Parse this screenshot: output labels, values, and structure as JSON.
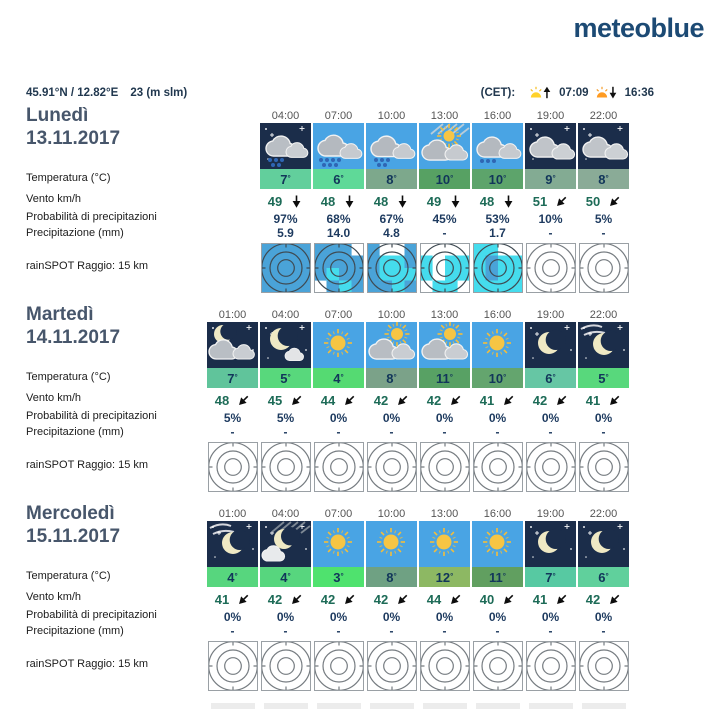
{
  "logo_text": "meteoblue",
  "header": {
    "coordinates": "45.91°N / 12.82°E",
    "elevation": "23 (m slm)",
    "timezone_label": "(CET):",
    "sunrise_time": "07:09",
    "sunset_time": "16:36"
  },
  "row_labels": {
    "temperature": "Temperatura (°C)",
    "wind": "Vento km/h",
    "precip_probability": "Probabilità di precipitazioni",
    "precip_amount": "Precipitazione (mm)",
    "rainspot": "rainSPOT Raggio: 15 km"
  },
  "deg_symbol": "°",
  "colors": {
    "logo": "#1c4a74",
    "day_sky": "#49a4e4",
    "night_sky": "#1b2d4a",
    "title_text": "#47566b",
    "navy_text": "#1d3a5f",
    "wind_text": "#1d6b57",
    "time_text": "#555555",
    "rainspot_blue": "#4aa3d8",
    "rainspot_cyan": "#45dced",
    "sunrise_yellow": "#ffd22a",
    "sunset_orange": "#ff9b21"
  },
  "days": [
    {
      "name": "Lunedì",
      "date": "13.11.2017",
      "columns": [
        null,
        {
          "time": "04:00",
          "icon": "rain-night",
          "temp": "7",
          "temp_color": "#62cf9c",
          "wind": "49",
          "wind_dir": "S",
          "prob": "97%",
          "precip": "5.9",
          "rainspot": "bbbbbbbbbbbbbbbb"
        },
        {
          "time": "07:00",
          "icon": "rain-day-heavy",
          "temp": "6",
          "temp_color": "#5fd998",
          "wind": "48",
          "wind_dir": "S",
          "prob": "68%",
          "precip": "14.0",
          "rainspot": "bbbwbbbbbcbbwbcb"
        },
        {
          "time": "10:00",
          "icon": "rain-day",
          "temp": "8",
          "temp_color": "#7da88c",
          "wind": "48",
          "wind_dir": "S",
          "prob": "67%",
          "precip": "4.8",
          "rainspot": "bwwbbccbbcccbbcb"
        },
        {
          "time": "13:00",
          "icon": "showers-day",
          "temp": "10",
          "temp_color": "#57a163",
          "wind": "49",
          "wind_dir": "S",
          "prob": "45%",
          "precip": "-",
          "rainspot": "wwwwcwcccwccwccw"
        },
        {
          "time": "16:00",
          "icon": "drizzle-day",
          "temp": "10",
          "temp_color": "#5da46b",
          "wind": "48",
          "wind_dir": "S",
          "prob": "53%",
          "precip": "1.7",
          "rainspot": "ccwwcbcccbcccccc"
        },
        {
          "time": "19:00",
          "icon": "cloudy-night",
          "temp": "9",
          "temp_color": "#83ab93",
          "wind": "51",
          "wind_dir": "SW",
          "prob": "10%",
          "precip": "-",
          "rainspot": "wwwwwwwwwwwwwwww"
        },
        {
          "time": "22:00",
          "icon": "cloudy-night",
          "temp": "8",
          "temp_color": "#8aab97",
          "wind": "50",
          "wind_dir": "SW",
          "prob": "5%",
          "precip": "-",
          "rainspot": "wwwwwwwwwwwwwwww"
        }
      ]
    },
    {
      "name": "Martedì",
      "date": "14.11.2017",
      "columns": [
        {
          "time": "01:00",
          "icon": "night-clouds-moon",
          "temp": "7",
          "temp_color": "#60c49b",
          "wind": "48",
          "wind_dir": "SW",
          "prob": "5%",
          "precip": "-",
          "rainspot": "wwwwwwwwwwwwwwww"
        },
        {
          "time": "04:00",
          "icon": "moon-cloud-night",
          "temp": "5",
          "temp_color": "#58d87c",
          "wind": "45",
          "wind_dir": "SW",
          "prob": "5%",
          "precip": "-",
          "rainspot": "wwwwwwwwwwwwwwww"
        },
        {
          "time": "07:00",
          "icon": "clear-day",
          "temp": "4",
          "temp_color": "#55da72",
          "wind": "44",
          "wind_dir": "SW",
          "prob": "0%",
          "precip": "-",
          "rainspot": "wwwwwwwwwwwwwwww"
        },
        {
          "time": "10:00",
          "icon": "partly-day",
          "temp": "8",
          "temp_color": "#7ba289",
          "wind": "42",
          "wind_dir": "SW",
          "prob": "0%",
          "precip": "-",
          "rainspot": "wwwwwwwwwwwwwwww"
        },
        {
          "time": "13:00",
          "icon": "partly-day",
          "temp": "11",
          "temp_color": "#58a164",
          "wind": "42",
          "wind_dir": "SW",
          "prob": "0%",
          "precip": "-",
          "rainspot": "wwwwwwwwwwwwwwww"
        },
        {
          "time": "16:00",
          "icon": "clear-day",
          "temp": "10",
          "temp_color": "#64a56e",
          "wind": "41",
          "wind_dir": "SW",
          "prob": "0%",
          "precip": "-",
          "rainspot": "wwwwwwwwwwwwwwww"
        },
        {
          "time": "19:00",
          "icon": "clear-night",
          "temp": "6",
          "temp_color": "#66c6a4",
          "wind": "42",
          "wind_dir": "SW",
          "prob": "0%",
          "precip": "-",
          "rainspot": "wwwwwwwwwwwwwwww"
        },
        {
          "time": "22:00",
          "icon": "cirrus-night",
          "temp": "5",
          "temp_color": "#58d87c",
          "wind": "41",
          "wind_dir": "SW",
          "prob": "0%",
          "precip": "-",
          "rainspot": "wwwwwwwwwwwwwwww"
        }
      ]
    },
    {
      "name": "Mercoledì",
      "date": "15.11.2017",
      "columns": [
        {
          "time": "01:00",
          "icon": "cirrus-night",
          "temp": "4",
          "temp_color": "#57d67e",
          "wind": "41",
          "wind_dir": "SW",
          "prob": "0%",
          "precip": "-",
          "rainspot": "wwwwwwwwwwwwwwww"
        },
        {
          "time": "04:00",
          "icon": "cirrus-cloud-night",
          "temp": "4",
          "temp_color": "#57d67e",
          "wind": "42",
          "wind_dir": "SW",
          "prob": "0%",
          "precip": "-",
          "rainspot": "wwwwwwwwwwwwwwww"
        },
        {
          "time": "07:00",
          "icon": "clear-day",
          "temp": "3",
          "temp_color": "#4fe26e",
          "wind": "42",
          "wind_dir": "SW",
          "prob": "0%",
          "precip": "-",
          "rainspot": "wwwwwwwwwwwwwwww"
        },
        {
          "time": "10:00",
          "icon": "clear-day",
          "temp": "8",
          "temp_color": "#6fa183",
          "wind": "42",
          "wind_dir": "SW",
          "prob": "0%",
          "precip": "-",
          "rainspot": "wwwwwwwwwwwwwwww"
        },
        {
          "time": "13:00",
          "icon": "clear-day",
          "temp": "12",
          "temp_color": "#8db863",
          "wind": "44",
          "wind_dir": "SW",
          "prob": "0%",
          "precip": "-",
          "rainspot": "wwwwwwwwwwwwwwww"
        },
        {
          "time": "16:00",
          "icon": "clear-day",
          "temp": "11",
          "temp_color": "#619f60",
          "wind": "40",
          "wind_dir": "SW",
          "prob": "0%",
          "precip": "-",
          "rainspot": "wwwwwwwwwwwwwwww"
        },
        {
          "time": "19:00",
          "icon": "clear-night",
          "temp": "7",
          "temp_color": "#57c9a2",
          "wind": "41",
          "wind_dir": "SW",
          "prob": "0%",
          "precip": "-",
          "rainspot": "wwwwwwwwwwwwwwww"
        },
        {
          "time": "22:00",
          "icon": "clear-night",
          "temp": "6",
          "temp_color": "#60d09c",
          "wind": "42",
          "wind_dir": "SW",
          "prob": "0%",
          "precip": "-",
          "rainspot": "wwwwwwwwwwwwwwww"
        }
      ]
    }
  ]
}
